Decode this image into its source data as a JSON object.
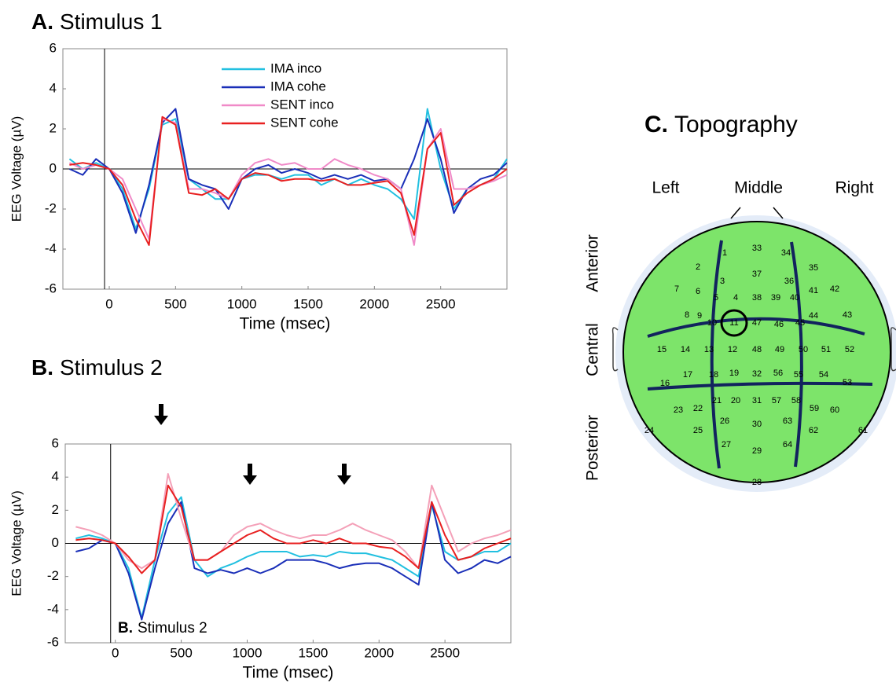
{
  "chart_data": [
    {
      "type": "line",
      "label": "A.",
      "title": "Stimulus 1",
      "xlabel": "Time (msec)",
      "ylabel": "EEG Voltage (µV)",
      "x": [
        -300,
        -200,
        -100,
        0,
        100,
        200,
        300,
        400,
        500,
        600,
        700,
        800,
        900,
        1000,
        1100,
        1200,
        1300,
        1400,
        1500,
        1600,
        1700,
        1800,
        1900,
        2000,
        2100,
        2200,
        2300,
        2400,
        2500,
        2600,
        2700,
        2800,
        2900,
        3000
      ],
      "xlim": [
        -350,
        3000
      ],
      "ylim": [
        -6,
        6
      ],
      "xticks": [
        0,
        500,
        1000,
        1500,
        2000,
        2500
      ],
      "yticks": [
        -6,
        -4,
        -2,
        0,
        2,
        4,
        6
      ],
      "legend": true,
      "series": [
        {
          "name": "IMA inco",
          "color": "#22c0e0",
          "values": [
            0.5,
            0,
            0.3,
            0,
            -1,
            -3,
            -1,
            2.2,
            2.5,
            -0.5,
            -1,
            -1.5,
            -1.5,
            -0.5,
            -0.3,
            -0.3,
            -0.5,
            -0.3,
            -0.3,
            -0.8,
            -0.5,
            -0.8,
            -0.5,
            -0.8,
            -1,
            -1.5,
            -2.5,
            3,
            0,
            -2,
            -1,
            -0.8,
            -0.5,
            0.5
          ]
        },
        {
          "name": "IMA cohe",
          "color": "#1a2fb8",
          "values": [
            0,
            -0.3,
            0.5,
            0,
            -1.2,
            -3.2,
            -0.8,
            2.3,
            3,
            -0.5,
            -0.8,
            -1,
            -2,
            -0.5,
            0,
            0.2,
            -0.2,
            0,
            -0.2,
            -0.5,
            -0.3,
            -0.5,
            -0.3,
            -0.6,
            -0.5,
            -1,
            0.5,
            2.5,
            0.5,
            -2.2,
            -1,
            -0.5,
            -0.3,
            0.3
          ]
        },
        {
          "name": "SENT inco",
          "color": "#f08ac8",
          "values": [
            0.3,
            0,
            0.2,
            0,
            -0.5,
            -2,
            -3.5,
            2.5,
            2.3,
            -1,
            -1,
            -1.2,
            -1.5,
            -0.3,
            0.3,
            0.5,
            0.2,
            0.3,
            0,
            0,
            0.5,
            0.2,
            0,
            -0.3,
            -0.5,
            -1,
            -3.8,
            1,
            2,
            -1,
            -1,
            -0.8,
            -0.6,
            -0.3
          ]
        },
        {
          "name": "SENT cohe",
          "color": "#e82020",
          "values": [
            0.2,
            0.3,
            0.2,
            0,
            -0.8,
            -2.5,
            -3.8,
            2.6,
            2.2,
            -1.2,
            -1.3,
            -1,
            -1.5,
            -0.5,
            -0.2,
            -0.3,
            -0.6,
            -0.5,
            -0.5,
            -0.6,
            -0.5,
            -0.8,
            -0.8,
            -0.7,
            -0.6,
            -1.2,
            -3.3,
            1,
            1.8,
            -1.8,
            -1.2,
            -0.8,
            -0.5,
            0
          ]
        }
      ]
    },
    {
      "type": "line",
      "label": "B.",
      "title": "Stimulus 2",
      "xlabel": "Time (msec)",
      "ylabel": "EEG Voltage (µV)",
      "annotation_label": "B.",
      "annotation": "Stimulus 2",
      "x": [
        -300,
        -200,
        -100,
        0,
        100,
        200,
        300,
        400,
        500,
        600,
        700,
        800,
        900,
        1000,
        1100,
        1200,
        1300,
        1400,
        1500,
        1600,
        1700,
        1800,
        1900,
        2000,
        2100,
        2200,
        2300,
        2400,
        2500,
        2600,
        2700,
        2800,
        2900,
        3000
      ],
      "xlim": [
        -380,
        3000
      ],
      "ylim": [
        -6,
        6
      ],
      "xticks": [
        0,
        500,
        1000,
        1500,
        2000,
        2500
      ],
      "yticks": [
        -6,
        -4,
        -2,
        0,
        2,
        4,
        6
      ],
      "legend": false,
      "series": [
        {
          "name": "IMA inco",
          "color": "#22c0e0",
          "values": [
            0.3,
            0.5,
            0.3,
            0,
            -1.5,
            -4.5,
            -1,
            1.8,
            2.8,
            -1,
            -2,
            -1.5,
            -1.2,
            -0.8,
            -0.5,
            -0.5,
            -0.5,
            -0.8,
            -0.7,
            -0.8,
            -0.5,
            -0.6,
            -0.6,
            -0.8,
            -1,
            -1.5,
            -2,
            2.3,
            -0.5,
            -1,
            -0.8,
            -0.5,
            -0.5,
            0
          ]
        },
        {
          "name": "IMA cohe",
          "color": "#1a2fb8",
          "values": [
            -0.5,
            -0.3,
            0.2,
            0,
            -1.8,
            -4.6,
            -1.5,
            1.2,
            2.5,
            -1.5,
            -1.8,
            -1.6,
            -1.8,
            -1.5,
            -1.8,
            -1.5,
            -1,
            -1,
            -1,
            -1.2,
            -1.5,
            -1.3,
            -1.2,
            -1.2,
            -1.5,
            -2,
            -2.5,
            2.5,
            -1,
            -1.8,
            -1.5,
            -1,
            -1.2,
            -0.8
          ]
        },
        {
          "name": "SENT inco",
          "color": "#f4a0b8",
          "values": [
            1,
            0.8,
            0.5,
            0,
            -1,
            -1.5,
            -1,
            4.2,
            1.5,
            -1,
            -1,
            -0.5,
            0.5,
            1,
            1.2,
            0.8,
            0.5,
            0.3,
            0.5,
            0.5,
            0.8,
            1.2,
            0.8,
            0.5,
            0.2,
            -0.5,
            -1.5,
            3.5,
            1.5,
            -0.5,
            0,
            0.3,
            0.5,
            0.8
          ]
        },
        {
          "name": "SENT cohe",
          "color": "#e82020",
          "values": [
            0.2,
            0.3,
            0.2,
            0,
            -0.8,
            -1.8,
            -1,
            3.5,
            2.2,
            -1,
            -1,
            -0.5,
            0,
            0.5,
            0.8,
            0.3,
            0,
            0,
            0.2,
            0,
            0.3,
            0,
            0,
            -0.2,
            -0.3,
            -0.8,
            -1.5,
            2.5,
            0.5,
            -1,
            -0.8,
            -0.3,
            0,
            0.3
          ]
        }
      ]
    }
  ],
  "topography": {
    "label": "C.",
    "title": "Topography",
    "columns": [
      "Left",
      "Middle",
      "Right"
    ],
    "rows": [
      "Anterior",
      "Central",
      "Posterior"
    ],
    "electrodes": [
      "1",
      "2",
      "3",
      "4",
      "5",
      "6",
      "7",
      "8",
      "9",
      "10",
      "11",
      "12",
      "13",
      "14",
      "15",
      "16",
      "17",
      "18",
      "19",
      "20",
      "21",
      "22",
      "23",
      "24",
      "25",
      "26",
      "27",
      "28",
      "29",
      "30",
      "31",
      "32",
      "33",
      "34",
      "35",
      "36",
      "37",
      "38",
      "39",
      "40",
      "41",
      "42",
      "43",
      "44",
      "45",
      "46",
      "47",
      "48",
      "49",
      "50",
      "51",
      "52",
      "53",
      "54",
      "55",
      "56",
      "57",
      "58",
      "59",
      "60",
      "61",
      "62",
      "63",
      "64"
    ],
    "highlighted": "11"
  }
}
